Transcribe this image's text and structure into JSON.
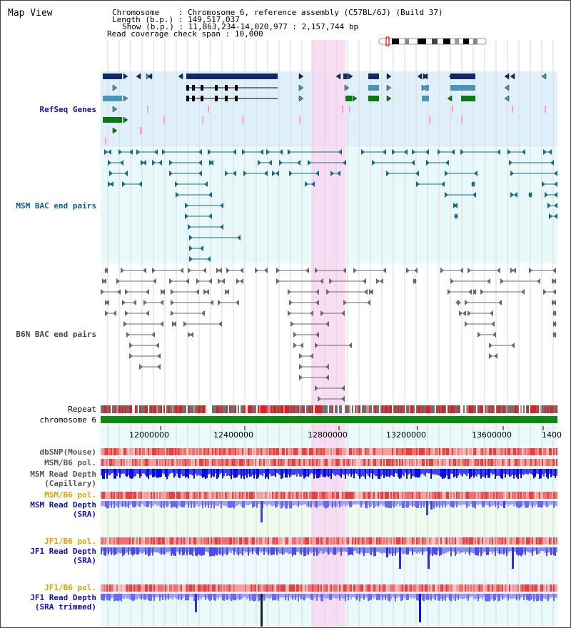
{
  "page_title": "Map View",
  "info": {
    "chromosome_key": "Chromosome",
    "chromosome_value": "Chromosome 6, reference assembly (C57BL/6J) (Build 37)",
    "length_key": "Length (b.p.)",
    "length_value": "149,517,037",
    "show_key": "Show (b.p.)",
    "show_value": "11,863,234-14,020,977 : 2,157,744 bp",
    "coverage_key": "Read coverage check span",
    "coverage_value": "10,000"
  },
  "tracks": {
    "refseq": "RefSeq Genes",
    "msm_bac": "MSM BAC end pairs",
    "b6n_bac": "B6N BAC end pairs",
    "repeat": "Repeat",
    "chromosome": "chromosome 6",
    "dbsnp": "dbSNP(Mouse)",
    "msm_b6_pol_1": "MSM/B6 pol.",
    "msm_depth_cap_1": "MSM Read Depth",
    "msm_depth_cap_2": "(Capillary)",
    "msm_b6_pol_2": "MSM/B6 pol.",
    "msm_depth_sra_1": "MSM Read Depth",
    "msm_depth_sra_2": "(SRA)",
    "jf1_b6_pol_1": "JF1/B6 pol.",
    "jf1_depth_sra_1": "JF1 Read Depth",
    "jf1_depth_sra_2": "(SRA)",
    "jf1_b6_pol_2": "JF1/B6 pol.",
    "jf1_depth_trim_1": "JF1 Read Depth",
    "jf1_depth_trim_2": "(SRA trimmed)"
  },
  "axis_ticks": [
    "12000000",
    "12400000",
    "12800000",
    "13200000",
    "13600000",
    "1400"
  ],
  "colors": {
    "refseq_bg": "#dff0fa",
    "msm_bac_bg": "#e9f8f8",
    "highlight": "#f7d9f2",
    "gene_dark": "#0d2a66",
    "gene_teal": "#4a94b8",
    "gene_green": "#0a7a10",
    "bac_teal": "#1a6a86",
    "bac_gray": "#6a6a6a",
    "depth_blue": "#1a1af0",
    "depth_light": "#8f8ff7"
  }
}
